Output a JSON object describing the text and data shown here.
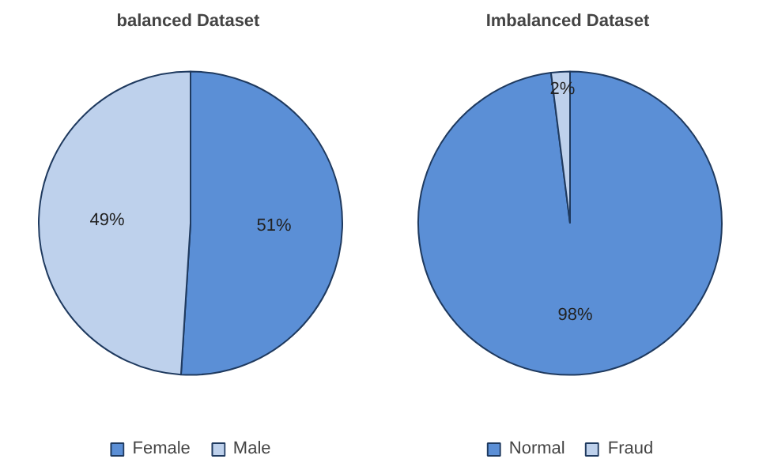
{
  "chart_data": [
    {
      "type": "pie",
      "title": "balanced  Dataset",
      "categories": [
        "Female",
        "Male"
      ],
      "values": [
        51,
        49
      ],
      "colors": [
        "#5b8fd6",
        "#bed1ec"
      ],
      "value_labels": [
        "51%",
        "49%"
      ],
      "legend": "bottom"
    },
    {
      "type": "pie",
      "title": "Imbalanced  Dataset",
      "categories": [
        "Normal",
        "Fraud"
      ],
      "values": [
        98,
        2
      ],
      "colors": [
        "#5b8fd6",
        "#bed1ec"
      ],
      "value_labels": [
        "98%",
        "2%"
      ],
      "legend": "bottom"
    }
  ]
}
